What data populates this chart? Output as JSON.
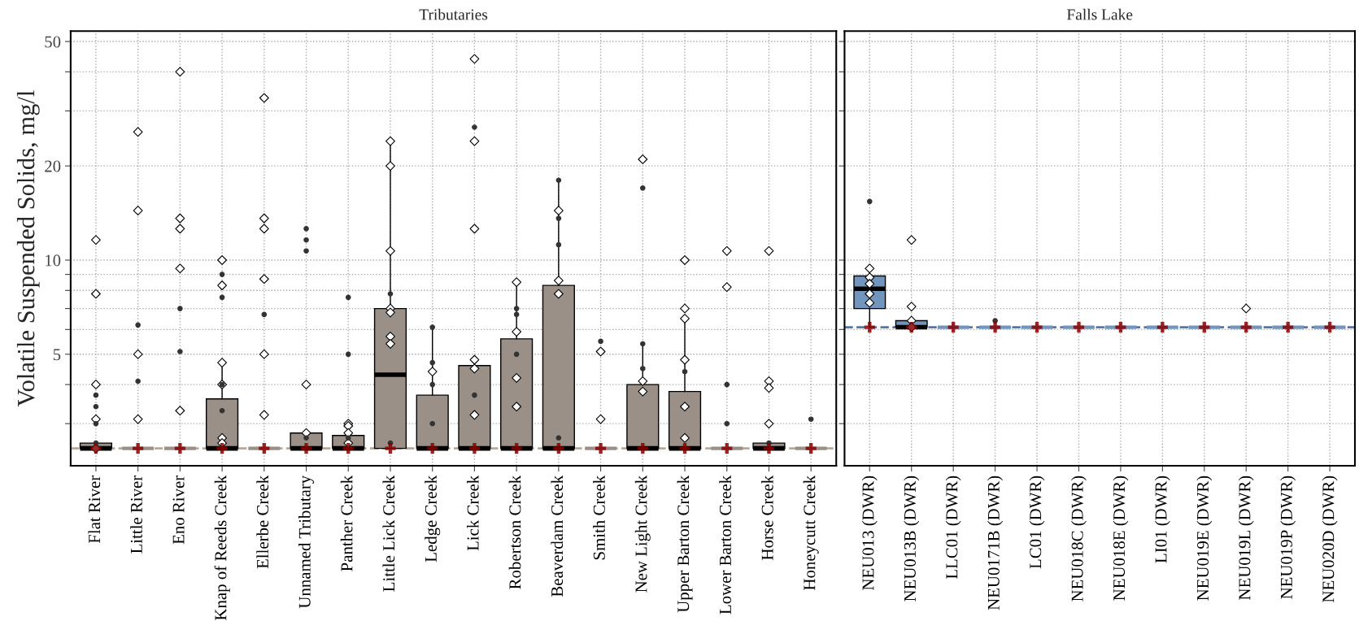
{
  "chart_data": [
    {
      "type": "box",
      "title": "Tributaries",
      "ylabel": "Volatile Suspended Solids, mg/l",
      "log": "y",
      "grid": true,
      "color": "#9a9087",
      "categories": [
        "Flat River",
        "Little River",
        "Eno River",
        "Knap of Reeds Creek",
        "Ellerbe Creek",
        "Unnamed Tributary",
        "Panther Creek",
        "Little Lick Creek",
        "Ledge Creek",
        "Lick Creek",
        "Robertson Creek",
        "Beaverdam Creek",
        "Smith Creek",
        "New Light Creek",
        "Upper Barton Creek",
        "Lower Barton Creek",
        "Horse Creek",
        "Honeycutt Creek"
      ],
      "boxes": [
        {
          "low": 2.5,
          "q1": 2.5,
          "median": 2.5,
          "q3": 2.6,
          "high": 2.6
        },
        {
          "low": 2.5,
          "q1": 2.5,
          "median": 2.5,
          "q3": 2.5,
          "high": 2.5
        },
        {
          "low": 2.5,
          "q1": 2.5,
          "median": 2.5,
          "q3": 2.5,
          "high": 2.5
        },
        {
          "low": 2.5,
          "q1": 2.5,
          "median": 2.5,
          "q3": 3.6,
          "high": 4.7
        },
        {
          "low": 2.5,
          "q1": 2.5,
          "median": 2.5,
          "q3": 2.5,
          "high": 2.5
        },
        {
          "low": 2.5,
          "q1": 2.5,
          "median": 2.5,
          "q3": 2.8,
          "high": 2.8
        },
        {
          "low": 2.5,
          "q1": 2.5,
          "median": 2.5,
          "q3": 2.75,
          "high": 2.75
        },
        {
          "low": 2.5,
          "q1": 2.5,
          "median": 4.3,
          "q3": 7.0,
          "high": 24
        },
        {
          "low": 2.5,
          "q1": 2.5,
          "median": 2.5,
          "q3": 3.7,
          "high": 6.1
        },
        {
          "low": 2.5,
          "q1": 2.5,
          "median": 2.5,
          "q3": 4.6,
          "high": 4.8
        },
        {
          "low": 2.5,
          "q1": 2.5,
          "median": 2.5,
          "q3": 5.6,
          "high": 8.5
        },
        {
          "low": 2.5,
          "q1": 2.5,
          "median": 2.5,
          "q3": 8.3,
          "high": 18
        },
        {
          "low": 2.5,
          "q1": 2.5,
          "median": 2.5,
          "q3": 2.5,
          "high": 2.5
        },
        {
          "low": 2.5,
          "q1": 2.5,
          "median": 2.5,
          "q3": 4.0,
          "high": 5.4
        },
        {
          "low": 2.5,
          "q1": 2.5,
          "median": 2.5,
          "q3": 3.8,
          "high": 6.5
        },
        {
          "low": 2.5,
          "q1": 2.5,
          "median": 2.5,
          "q3": 2.5,
          "high": 2.5
        },
        {
          "low": 2.5,
          "q1": 2.5,
          "median": 2.5,
          "q3": 2.6,
          "high": 2.6
        },
        {
          "low": 2.5,
          "q1": 2.5,
          "median": 2.5,
          "q3": 2.5,
          "high": 2.5
        }
      ],
      "series": [
        {
          "type": "scatter",
          "marker": "diamond",
          "color": "#ffffff",
          "x": [
            "Flat River",
            "Flat River",
            "Flat River",
            "Flat River",
            "Flat River",
            "Little River",
            "Little River",
            "Little River",
            "Little River",
            "Eno River",
            "Eno River",
            "Eno River",
            "Eno River",
            "Eno River",
            "Knap of Reeds Creek",
            "Knap of Reeds Creek",
            "Knap of Reeds Creek",
            "Knap of Reeds Creek",
            "Knap of Reeds Creek",
            "Knap of Reeds Creek",
            "Ellerbe Creek",
            "Ellerbe Creek",
            "Ellerbe Creek",
            "Ellerbe Creek",
            "Ellerbe Creek",
            "Ellerbe Creek",
            "Unnamed Tributary",
            "Unnamed Tributary",
            "Panther Creek",
            "Panther Creek",
            "Panther Creek",
            "Panther Creek",
            "Little Lick Creek",
            "Little Lick Creek",
            "Little Lick Creek",
            "Little Lick Creek",
            "Little Lick Creek",
            "Little Lick Creek",
            "Little Lick Creek",
            "Ledge Creek",
            "Lick Creek",
            "Lick Creek",
            "Lick Creek",
            "Lick Creek",
            "Lick Creek",
            "Lick Creek",
            "Robertson Creek",
            "Robertson Creek",
            "Robertson Creek",
            "Robertson Creek",
            "Beaverdam Creek",
            "Beaverdam Creek",
            "Beaverdam Creek",
            "Smith Creek",
            "Smith Creek",
            "New Light Creek",
            "New Light Creek",
            "New Light Creek",
            "Upper Barton Creek",
            "Upper Barton Creek",
            "Upper Barton Creek",
            "Upper Barton Creek",
            "Upper Barton Creek",
            "Upper Barton Creek",
            "Lower Barton Creek",
            "Lower Barton Creek",
            "Horse Creek",
            "Horse Creek",
            "Horse Creek",
            "Horse Creek"
          ],
          "values": [
            11.6,
            7.8,
            4.0,
            3.1,
            2.5,
            25.7,
            14.4,
            5.0,
            3.1,
            40,
            13.6,
            12.6,
            9.4,
            3.3,
            10,
            8.3,
            4.7,
            4.0,
            2.7,
            2.6,
            33,
            13.6,
            12.6,
            8.7,
            5.0,
            3.2,
            4.0,
            2.8,
            3.0,
            2.95,
            2.8,
            2.6,
            24,
            20,
            10.7,
            7.0,
            6.8,
            5.7,
            5.4,
            4.4,
            44,
            24,
            12.6,
            4.8,
            4.5,
            3.2,
            8.5,
            5.9,
            4.2,
            3.4,
            14.4,
            8.6,
            7.8,
            5.1,
            3.1,
            21,
            4.1,
            3.8,
            10,
            7.0,
            6.5,
            4.8,
            3.4,
            2.7,
            10.7,
            8.2,
            10.7,
            4.1,
            3.9,
            3.0
          ]
        },
        {
          "type": "scatter",
          "marker": "circle",
          "color": "#333333",
          "x": [
            "Flat River",
            "Flat River",
            "Flat River",
            "Flat River",
            "Little River",
            "Little River",
            "Eno River",
            "Eno River",
            "Knap of Reeds Creek",
            "Knap of Reeds Creek",
            "Knap of Reeds Creek",
            "Knap of Reeds Creek",
            "Ellerbe Creek",
            "Unnamed Tributary",
            "Unnamed Tributary",
            "Unnamed Tributary",
            "Unnamed Tributary",
            "Panther Creek",
            "Panther Creek",
            "Panther Creek",
            "Little Lick Creek",
            "Little Lick Creek",
            "Ledge Creek",
            "Ledge Creek",
            "Ledge Creek",
            "Ledge Creek",
            "Lick Creek",
            "Lick Creek",
            "Robertson Creek",
            "Robertson Creek",
            "Robertson Creek",
            "Beaverdam Creek",
            "Beaverdam Creek",
            "Beaverdam Creek",
            "Beaverdam Creek",
            "Smith Creek",
            "New Light Creek",
            "New Light Creek",
            "New Light Creek",
            "Upper Barton Creek",
            "Lower Barton Creek",
            "Lower Barton Creek",
            "Horse Creek",
            "Honeycutt Creek"
          ],
          "values": [
            3.7,
            3.4,
            3.0,
            2.6,
            6.2,
            4.1,
            7.0,
            5.1,
            9.0,
            7.6,
            4.0,
            3.3,
            6.7,
            12.6,
            11.6,
            10.7,
            2.7,
            7.6,
            5.0,
            2.7,
            7.8,
            2.6,
            6.1,
            4.7,
            4.0,
            3.0,
            26.6,
            3.7,
            7.0,
            6.7,
            5.0,
            18,
            13.6,
            11.2,
            2.7,
            5.5,
            17,
            5.4,
            4.5,
            4.4,
            4.0,
            3.0,
            2.6,
            3.1
          ]
        },
        {
          "type": "scatter",
          "marker": "cross",
          "color": "#8b0000",
          "x": [
            "Flat River",
            "Little River",
            "Eno River",
            "Knap of Reeds Creek",
            "Ellerbe Creek",
            "Unnamed Tributary",
            "Panther Creek",
            "Little Lick Creek",
            "Ledge Creek",
            "Lick Creek",
            "Robertson Creek",
            "Beaverdam Creek",
            "Smith Creek",
            "New Light Creek",
            "Upper Barton Creek",
            "Lower Barton Creek",
            "Horse Creek",
            "Honeycutt Creek"
          ],
          "values": [
            2.5,
            2.5,
            2.5,
            2.5,
            2.5,
            2.5,
            2.5,
            2.5,
            2.5,
            2.5,
            2.5,
            2.5,
            2.5,
            2.5,
            2.5,
            2.5,
            2.5,
            2.5
          ]
        }
      ],
      "ref_lines": [
        {
          "axis": "y",
          "value": 2.5,
          "color": "#b5a99c",
          "line_style": "dashed"
        }
      ],
      "ylim": [
        2.2,
        54
      ],
      "yticks": [
        {
          "value": 3,
          "label": null
        },
        {
          "value": 4,
          "label": null
        },
        5,
        {
          "value": 6,
          "label": null
        },
        {
          "value": 7,
          "label": null
        },
        {
          "value": 8,
          "label": null
        },
        {
          "value": 9,
          "label": null
        },
        10,
        20,
        {
          "value": 30,
          "label": null
        },
        {
          "value": 40,
          "label": null
        },
        50
      ]
    },
    {
      "type": "box",
      "title": "Falls Lake",
      "log": "y",
      "grid": true,
      "color": "#7295bd",
      "tick_labels": "x",
      "categories": [
        "NEU013 (DWR)",
        "NEU013B (DWR)",
        "LLC01 (DWR)",
        "NEU0171B (DWR)",
        "LC01 (DWR)",
        "NEU018C (DWR)",
        "NEU018E (DWR)",
        "LI01 (DWR)",
        "NEU019E (DWR)",
        "NEU019L (DWR)",
        "NEU019P (DWR)",
        "NEU020D (DWR)"
      ],
      "boxes": [
        {
          "low": 6.1,
          "q1": 7.0,
          "median": 8.1,
          "q3": 8.9,
          "high": 9.4
        },
        {
          "low": 6.1,
          "q1": 6.1,
          "median": 6.1,
          "q3": 6.4,
          "high": 6.4
        },
        {
          "low": 6.1,
          "q1": 6.1,
          "median": 6.1,
          "q3": 6.1,
          "high": 6.1
        },
        {
          "low": 6.1,
          "q1": 6.1,
          "median": 6.1,
          "q3": 6.1,
          "high": 6.1
        },
        {
          "low": 6.1,
          "q1": 6.1,
          "median": 6.1,
          "q3": 6.1,
          "high": 6.1
        },
        {
          "low": 6.1,
          "q1": 6.1,
          "median": 6.1,
          "q3": 6.1,
          "high": 6.1
        },
        {
          "low": 6.1,
          "q1": 6.1,
          "median": 6.1,
          "q3": 6.1,
          "high": 6.1
        },
        {
          "low": 6.1,
          "q1": 6.1,
          "median": 6.1,
          "q3": 6.1,
          "high": 6.1
        },
        {
          "low": 6.1,
          "q1": 6.1,
          "median": 6.1,
          "q3": 6.1,
          "high": 6.1
        },
        {
          "low": 6.1,
          "q1": 6.1,
          "median": 6.1,
          "q3": 6.1,
          "high": 6.1
        },
        {
          "low": 6.1,
          "q1": 6.1,
          "median": 6.1,
          "q3": 6.1,
          "high": 6.1
        },
        {
          "low": 6.1,
          "q1": 6.1,
          "median": 6.1,
          "q3": 6.1,
          "high": 6.1
        }
      ],
      "series": [
        {
          "type": "scatter",
          "marker": "diamond",
          "color": "#ffffff",
          "x": [
            "NEU013 (DWR)",
            "NEU013 (DWR)",
            "NEU013 (DWR)",
            "NEU013 (DWR)",
            "NEU013 (DWR)",
            "NEU013B (DWR)",
            "NEU013B (DWR)",
            "NEU013B (DWR)",
            "NEU013B (DWR)",
            "NEU019L (DWR)"
          ],
          "values": [
            9.4,
            8.8,
            8.4,
            7.8,
            7.3,
            11.6,
            7.1,
            6.4,
            6.1,
            7.0
          ]
        },
        {
          "type": "scatter",
          "marker": "circle",
          "color": "#333333",
          "x": [
            "NEU013 (DWR)",
            "NEU0171B (DWR)"
          ],
          "values": [
            15.4,
            6.4
          ]
        },
        {
          "type": "scatter",
          "marker": "cross",
          "color": "#8b0000",
          "x": [
            "NEU013 (DWR)",
            "NEU013B (DWR)",
            "LLC01 (DWR)",
            "NEU0171B (DWR)",
            "LC01 (DWR)",
            "NEU018C (DWR)",
            "NEU018E (DWR)",
            "LI01 (DWR)",
            "NEU019E (DWR)",
            "NEU019L (DWR)",
            "NEU019P (DWR)",
            "NEU020D (DWR)"
          ],
          "values": [
            6.1,
            6.1,
            6.1,
            6.1,
            6.1,
            6.1,
            6.1,
            6.1,
            6.1,
            6.1,
            6.1,
            6.1
          ]
        }
      ],
      "ref_lines": [
        {
          "axis": "y",
          "value": 6.1,
          "color": "#4f78b0",
          "line_style": "dashed"
        }
      ],
      "ylim": [
        2.2,
        54
      ],
      "yticks": [
        {
          "value": 3,
          "label": null
        },
        {
          "value": 4,
          "label": null
        },
        {
          "value": 5,
          "label": null
        },
        {
          "value": 6,
          "label": null
        },
        {
          "value": 7,
          "label": null
        },
        {
          "value": 8,
          "label": null
        },
        {
          "value": 9,
          "label": null
        },
        {
          "value": 10,
          "label": null
        },
        {
          "value": 20,
          "label": null
        },
        {
          "value": 30,
          "label": null
        },
        {
          "value": 40,
          "label": null
        },
        {
          "value": 50,
          "label": null
        }
      ]
    }
  ]
}
